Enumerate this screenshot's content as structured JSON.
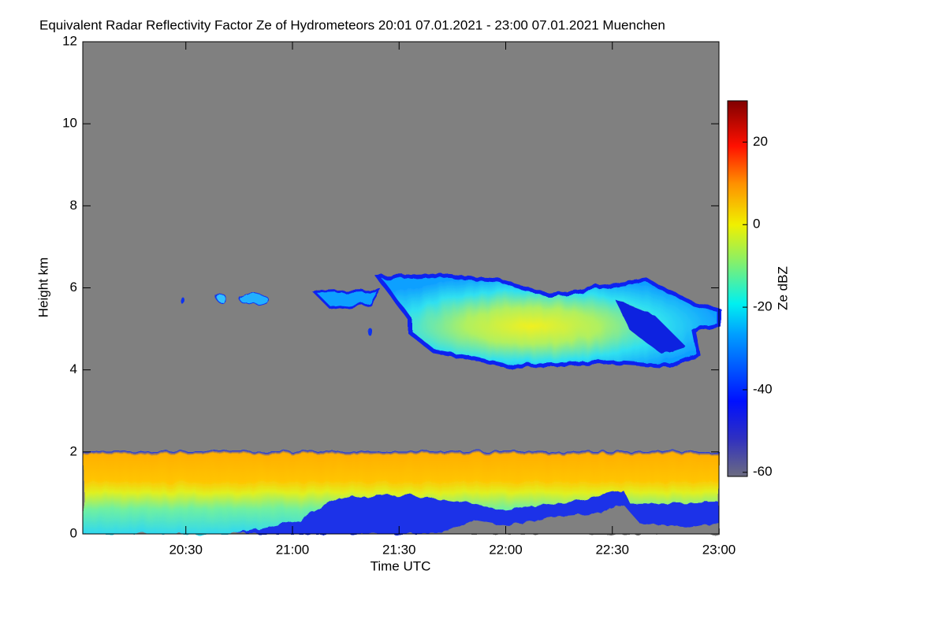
{
  "chart_data": {
    "type": "heatmap",
    "title": "Equivalent Radar Reflectivity Factor Ze of Hydrometeors   20:01 07.01.2021 - 23:00 07.01.2021 Muenchen",
    "xlabel": "Time UTC",
    "ylabel": "Height km",
    "xlim": [
      "20:01",
      "23:00"
    ],
    "xticks": [
      "20:30",
      "21:00",
      "21:30",
      "22:00",
      "22:30",
      "23:00"
    ],
    "ylim": [
      0,
      12
    ],
    "yticks": [
      0,
      2,
      4,
      6,
      8,
      10,
      12
    ],
    "colorbar": {
      "label": "Ze dBZ",
      "lim": [
        -61,
        30
      ],
      "ticks": [
        -60,
        -40,
        -20,
        0,
        20
      ]
    }
  }
}
